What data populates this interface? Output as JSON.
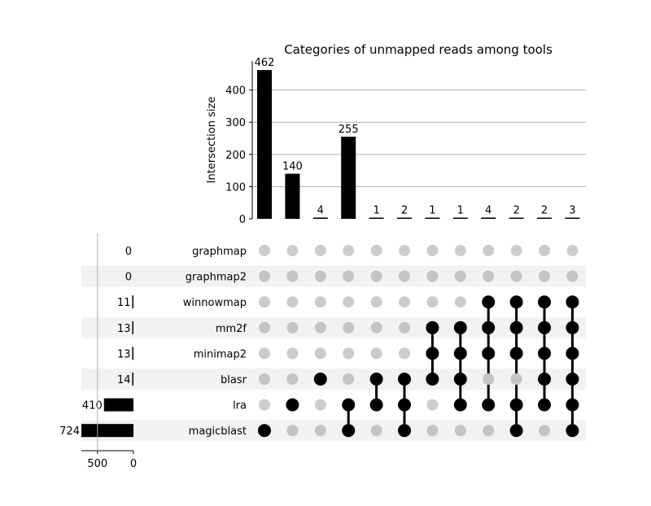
{
  "chart_data": {
    "type": "bar",
    "title": "Categories of unmapped reads among tools",
    "ylabel": "Intersection size",
    "ylim": [
      0,
      490
    ],
    "yticks": [
      0,
      100,
      200,
      300,
      400
    ],
    "grid": true,
    "sets": [
      {
        "name": "graphmap",
        "size": 0
      },
      {
        "name": "graphmap2",
        "size": 0
      },
      {
        "name": "winnowmap",
        "size": 11
      },
      {
        "name": "mm2f",
        "size": 13
      },
      {
        "name": "minimap2",
        "size": 13
      },
      {
        "name": "blasr",
        "size": 14
      },
      {
        "name": "lra",
        "size": 410
      },
      {
        "name": "magicblast",
        "size": 724
      }
    ],
    "set_size_xticks": [
      500,
      0
    ],
    "intersections": [
      {
        "value": 462,
        "members": [
          "magicblast"
        ]
      },
      {
        "value": 140,
        "members": [
          "lra"
        ]
      },
      {
        "value": 4,
        "members": [
          "blasr"
        ]
      },
      {
        "value": 255,
        "members": [
          "lra",
          "magicblast"
        ]
      },
      {
        "value": 1,
        "members": [
          "blasr",
          "lra"
        ]
      },
      {
        "value": 2,
        "members": [
          "blasr",
          "lra",
          "magicblast"
        ]
      },
      {
        "value": 1,
        "members": [
          "mm2f",
          "minimap2",
          "blasr"
        ]
      },
      {
        "value": 1,
        "members": [
          "mm2f",
          "minimap2",
          "blasr",
          "lra"
        ]
      },
      {
        "value": 4,
        "members": [
          "winnowmap",
          "mm2f",
          "minimap2",
          "lra"
        ]
      },
      {
        "value": 2,
        "members": [
          "winnowmap",
          "mm2f",
          "minimap2",
          "lra",
          "magicblast"
        ]
      },
      {
        "value": 2,
        "members": [
          "winnowmap",
          "mm2f",
          "minimap2",
          "blasr",
          "lra"
        ]
      },
      {
        "value": 3,
        "members": [
          "winnowmap",
          "mm2f",
          "minimap2",
          "blasr",
          "lra",
          "magicblast"
        ]
      }
    ]
  },
  "colors": {
    "bar": "#000000",
    "dot_active": "#000000",
    "dot_inactive": "#cccccc",
    "dot_inactive_shaded": "#c4c4c4",
    "row_shade": "#f2f2f2",
    "grid": "#b0b0b0"
  }
}
